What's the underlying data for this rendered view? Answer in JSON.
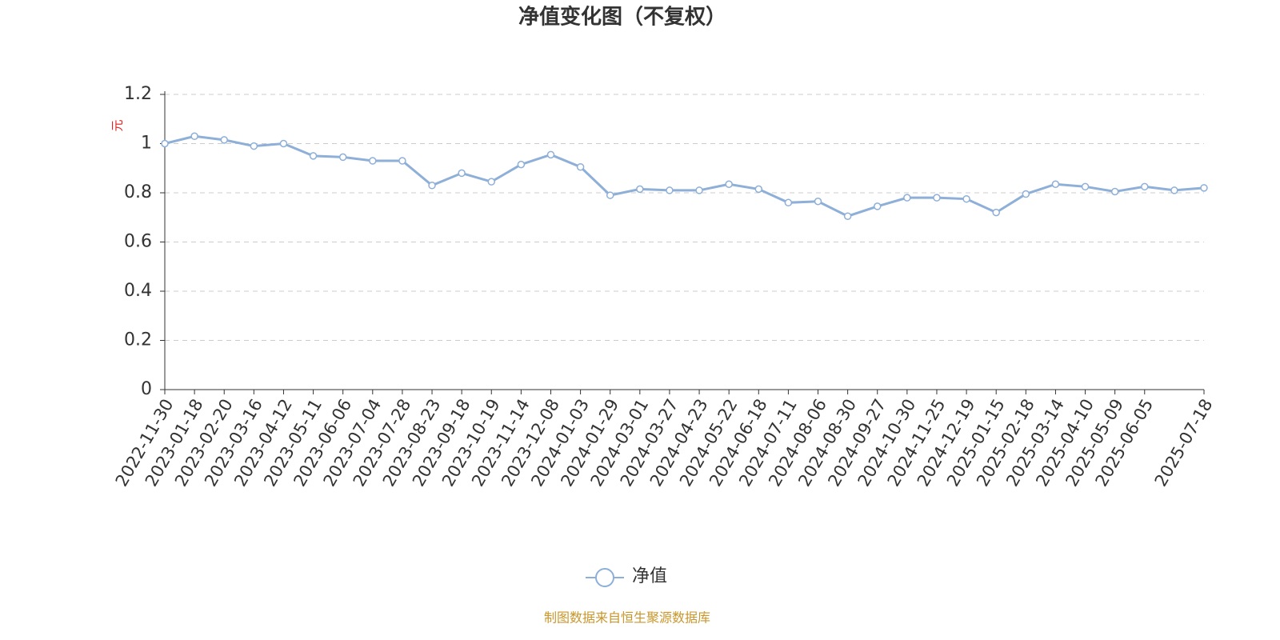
{
  "chart_data": {
    "type": "line",
    "title": "净值变化图（不复权）",
    "y_label": "元",
    "source": "制图数据来自恒生聚源数据库",
    "x": [
      "2022-11-30",
      "2023-01-18",
      "2023-02-20",
      "2023-03-16",
      "2023-04-12",
      "2023-05-11",
      "2023-06-06",
      "2023-07-04",
      "2023-07-28",
      "2023-08-23",
      "2023-09-18",
      "2023-10-19",
      "2023-11-14",
      "2023-12-08",
      "2024-01-03",
      "2024-01-29",
      "2024-03-01",
      "2024-03-27",
      "2024-04-23",
      "2024-05-22",
      "2024-06-18",
      "2024-07-11",
      "2024-08-06",
      "2024-08-30",
      "2024-09-27",
      "2024-10-30",
      "2024-11-25",
      "2024-12-19",
      "2025-01-15",
      "2025-02-18",
      "2025-03-14",
      "2025-04-10",
      "2025-05-09",
      "2025-06-05",
      null,
      "2025-07-18"
    ],
    "series": [
      {
        "name": "净值",
        "color": "#8eafd8",
        "values": [
          1.0,
          1.03,
          1.015,
          0.99,
          1.0,
          0.95,
          0.945,
          0.93,
          0.93,
          0.83,
          0.88,
          0.845,
          0.915,
          0.955,
          0.905,
          0.79,
          0.815,
          0.81,
          0.81,
          0.835,
          0.815,
          0.76,
          0.765,
          0.705,
          0.745,
          0.78,
          0.78,
          0.775,
          0.72,
          0.795,
          0.835,
          0.825,
          0.805,
          0.825,
          0.81,
          0.82
        ]
      }
    ],
    "ylim": [
      0,
      1.2
    ],
    "yticks": [
      0,
      0.2,
      0.4,
      0.6,
      0.8,
      1,
      1.2
    ],
    "grid": true
  }
}
